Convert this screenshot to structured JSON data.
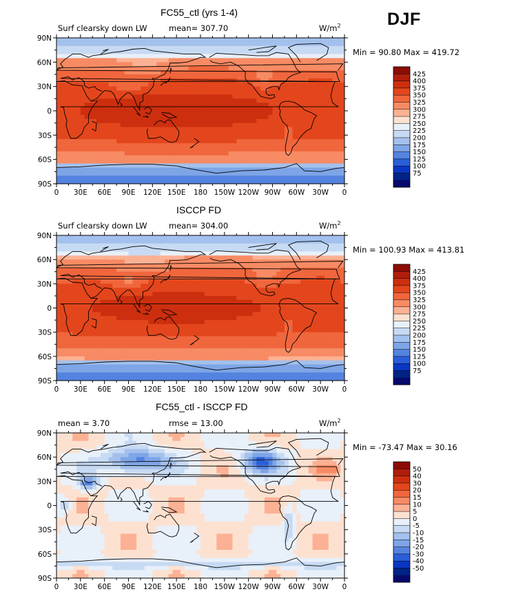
{
  "season": "DJF",
  "chart_data": [
    {
      "type": "heatmap",
      "title": "FC55_ctl (yrs 1-4)",
      "left_label": "Surf clearsky down LW",
      "center_label": "mean= 307.70",
      "units": "W/m",
      "units_sup": "2",
      "minmax": "Min =  90.80 Max = 419.72",
      "field_min": 90.8,
      "field_max": 419.72,
      "field_mean": 307.7,
      "x_ticks": [
        "0",
        "30E",
        "60E",
        "90E",
        "120E",
        "150E",
        "180",
        "150W",
        "120W",
        "90W",
        "60W",
        "30W",
        "0"
      ],
      "y_ticks": [
        "90N",
        "60N",
        "30N",
        "0",
        "30S",
        "60S",
        "90S"
      ],
      "colorbar_levels": [
        "425",
        "400",
        "375",
        "350",
        "325",
        "300",
        "275",
        "250",
        "225",
        "200",
        "175",
        "150",
        "125",
        "100",
        "75"
      ],
      "colorbar_colors": [
        "#8c0c06",
        "#ae1e0b",
        "#cc2f0f",
        "#e3461c",
        "#f0663d",
        "#f78b64",
        "#fbb194",
        "#fde1d0",
        "#e8f0fa",
        "#c7daf3",
        "#a3c1ec",
        "#7ea5e6",
        "#5483e0",
        "#2a5ed7",
        "#0a36c4",
        "#002385",
        "#050a6b"
      ]
    },
    {
      "type": "heatmap",
      "title": "ISCCP FD",
      "left_label": "Surf clearsky down LW",
      "center_label": "mean= 304.00",
      "units": "W/m",
      "units_sup": "2",
      "minmax": "Min = 100.93 Max = 413.81",
      "field_min": 100.93,
      "field_max": 413.81,
      "field_mean": 304.0,
      "x_ticks": [
        "0",
        "30E",
        "60E",
        "90E",
        "120E",
        "150E",
        "180",
        "150W",
        "120W",
        "90W",
        "60W",
        "30W",
        "0"
      ],
      "y_ticks": [
        "90N",
        "60N",
        "30N",
        "0",
        "30S",
        "60S",
        "90S"
      ],
      "colorbar_levels": [
        "425",
        "400",
        "375",
        "350",
        "325",
        "300",
        "275",
        "250",
        "225",
        "200",
        "175",
        "150",
        "125",
        "100",
        "75"
      ],
      "colorbar_colors": [
        "#8c0c06",
        "#ae1e0b",
        "#cc2f0f",
        "#e3461c",
        "#f0663d",
        "#f78b64",
        "#fbb194",
        "#fde1d0",
        "#e8f0fa",
        "#c7daf3",
        "#a3c1ec",
        "#7ea5e6",
        "#5483e0",
        "#2a5ed7",
        "#0a36c4",
        "#002385",
        "#050a6b"
      ]
    },
    {
      "type": "heatmap",
      "title": "FC55_ctl - ISCCP FD",
      "left_label": "mean =   3.70",
      "center_label": "rmse =  13.00",
      "units": "W/m",
      "units_sup": "2",
      "minmax": "Min = -73.47 Max =  30.16",
      "field_min": -73.47,
      "field_max": 30.16,
      "field_mean": 3.7,
      "field_rmse": 13.0,
      "x_ticks": [
        "0",
        "30E",
        "60E",
        "90E",
        "120E",
        "150E",
        "180",
        "150W",
        "120W",
        "90W",
        "60W",
        "30W",
        "0"
      ],
      "y_ticks": [
        "90N",
        "60N",
        "30N",
        "0",
        "30S",
        "60S",
        "90S"
      ],
      "colorbar_levels": [
        "50",
        "40",
        "30",
        "20",
        "15",
        "10",
        "5",
        "0",
        "-5",
        "-10",
        "-15",
        "-20",
        "-30",
        "-40",
        "-50"
      ],
      "colorbar_colors": [
        "#8c0c06",
        "#ae1e0b",
        "#cc2f0f",
        "#e3461c",
        "#f0663d",
        "#f78b64",
        "#fbb194",
        "#fde1d0",
        "#e8f0fa",
        "#c7daf3",
        "#a3c1ec",
        "#7ea5e6",
        "#5483e0",
        "#2a5ed7",
        "#0a36c4",
        "#002385",
        "#050a6b"
      ]
    }
  ]
}
